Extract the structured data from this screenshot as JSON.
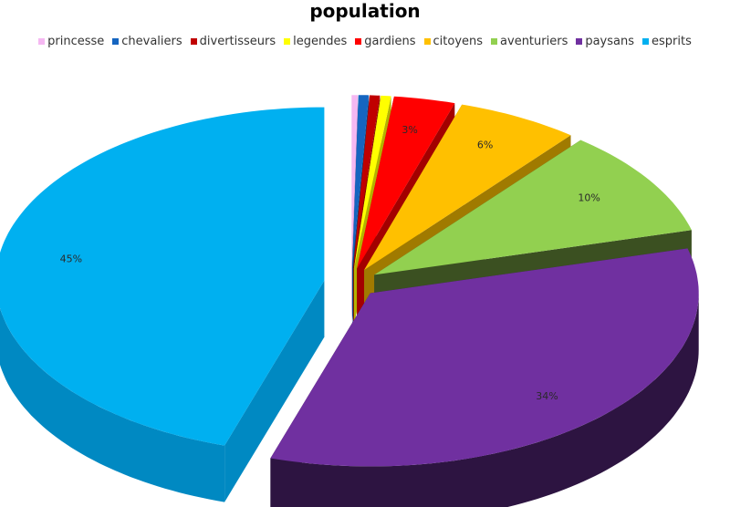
{
  "chart_data": {
    "type": "pie",
    "title": "population",
    "legend_position": "top",
    "three_d": true,
    "exploded": true,
    "slices": [
      {
        "name": "princesse",
        "value": 0.3,
        "color": "#f5b8f2",
        "side": "#c98fc6",
        "label": ""
      },
      {
        "name": "chevaliers",
        "value": 0.5,
        "color": "#1565c0",
        "side": "#0d4785",
        "label": ""
      },
      {
        "name": "divertisseurs",
        "value": 0.5,
        "color": "#c00000",
        "side": "#7d0000",
        "label": ""
      },
      {
        "name": "legendes",
        "value": 0.5,
        "color": "#ffff00",
        "side": "#b3b300",
        "label": ""
      },
      {
        "name": "gardiens",
        "value": 3,
        "color": "#ff0000",
        "side": "#a30000",
        "label": "3%"
      },
      {
        "name": "citoyens",
        "value": 6,
        "color": "#ffc000",
        "side": "#a07a00",
        "label": "6%"
      },
      {
        "name": "aventuriers",
        "value": 10,
        "color": "#92d050",
        "side": "#3b5021",
        "label": "10%"
      },
      {
        "name": "paysans",
        "value": 34,
        "color": "#7030a0",
        "side": "#2d1441",
        "label": "34%"
      },
      {
        "name": "esprits",
        "value": 45,
        "color": "#00b0f0",
        "side": "#0089c2",
        "label": "45%"
      }
    ]
  }
}
